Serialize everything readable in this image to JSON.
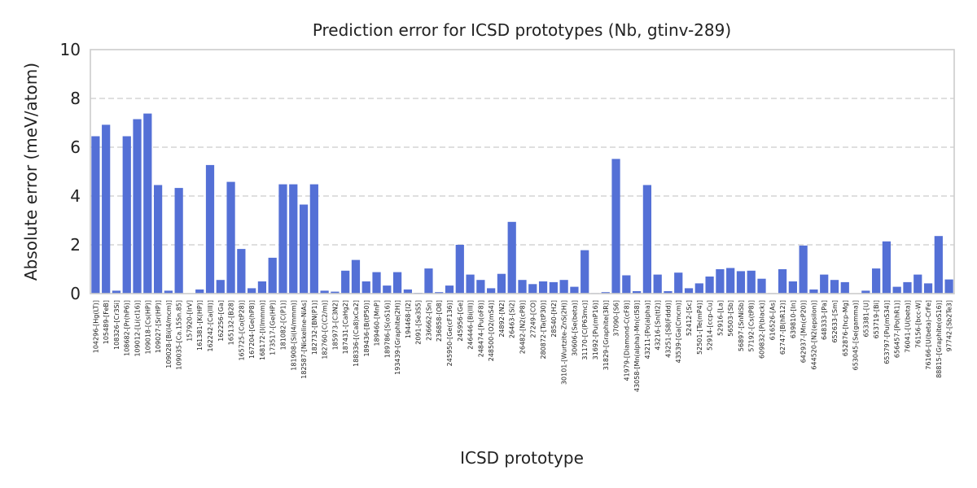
{
  "chart_data": {
    "type": "bar",
    "title": "Prediction error for ICSD prototypes (Nb, gtinv-289)",
    "xlabel": "ICSD prototype",
    "ylabel": "Absolute error (meV/atom)",
    "ylim": [
      0,
      10
    ],
    "yticks": [
      0,
      2,
      4,
      6,
      8,
      10
    ],
    "grid": "y",
    "bar_color": "#5470d6",
    "categories": [
      "104296-[Hg(LT)]",
      "105489-[FeB]",
      "108326-[Cr3Si]",
      "108682-[Pr(hP6)]",
      "109012-[Li(cI16)]",
      "109018-[Cs(HP)]",
      "109027-[Sr(HP)]",
      "109028-[Bi(I4/mcm)]",
      "109035-[Ca.15Sn.85]",
      "157920-[IrV]",
      "161381-[K(HP)]",
      "162242-[Ca(III)]",
      "162256-[Ga]",
      "165132-[B28]",
      "165725-[Co(tP28)]",
      "167204-[Ge(hP8)]",
      "168172-[I(Immm)]",
      "173517-[Ge(HP)]",
      "181082-[C(P1)]",
      "181908-[Si(I4/mmm)]",
      "182587-[Nickeline-NiAs]",
      "182732-[BN(P1)]",
      "182760-[C(C2/m)]",
      "185973-[C3N2]",
      "187431-[CaHg2]",
      "188336-[(Ca8)xCa2]",
      "189436-[B(tP50)]",
      "189460-[MnP]",
      "189786-[S(oS16)]",
      "193439-[Graphite(2H)]",
      "194468-[I2]",
      "2091-[Se3S5]",
      "236662-[Sn]",
      "236858-[O8]",
      "245950-[Ge(cF136)]",
      "245956-[Ge]",
      "246446-[Bi(III)]",
      "248474-[Pu(oF8)]",
      "248500-[O2(mS4)]",
      "24892-[N2]",
      "26463-[Si2]",
      "26482-[N2(cP8)]",
      "27249-[CO]",
      "280872-[Ta(tP30)]",
      "28540-[H2]",
      "30101-[Wurtzite-ZnS(2H)]",
      "30606-[Se(beta)]",
      "31170-[C(P63mc)]",
      "31692-[Pu(mP16)]",
      "31829-[Graphite(3R)]",
      "37090-[S6]",
      "41979-[Diamond-C(cF8)]",
      "43058-[Mn(alpha)-Mn(cI58)]",
      "43211-[Po(alpha)]",
      "43216-[Sn(tI2)]",
      "43251-[S8(Fddd)]",
      "43539-[Ga(Cmcm)]",
      "52412-[Sc]",
      "52501-[Te(mP4)]",
      "52914-[ccp-Cu]",
      "52916-[La]",
      "56503-[Sb]",
      "56897-[SnNiSb]",
      "57192-[Cs(tP8)]",
      "609832-[P(black)]",
      "616526-[As]",
      "62747-[B(hR12)]",
      "639810-[In]",
      "642937-[Mn(cP20)]",
      "644520-[N2(epsilon)]",
      "648333-[Pa]",
      "652633-[Sm]",
      "652876-[hcp-Mg]",
      "653045-[Se(gamma)]",
      "653381-[U]",
      "653719-[Bi]",
      "653797-[Pu(mS34)]",
      "656457-[Po(hR1)]",
      "76041-[U(beta)]",
      "76156-[bcc-W]",
      "76166-[U(beta)-CrFe]",
      "88815-[Graphite(oS16)]",
      "97742-[Sb2Te3]"
    ],
    "values": [
      6.45,
      6.92,
      0.12,
      6.45,
      7.15,
      7.38,
      4.45,
      0.12,
      4.33,
      0.0,
      0.17,
      5.27,
      0.56,
      4.58,
      1.83,
      0.22,
      0.5,
      1.47,
      4.48,
      4.48,
      3.65,
      4.48,
      0.12,
      0.08,
      0.94,
      1.38,
      0.5,
      0.88,
      0.33,
      0.88,
      0.17,
      0.03,
      1.03,
      0.06,
      0.33,
      2.0,
      0.78,
      0.56,
      0.22,
      0.81,
      2.94,
      0.56,
      0.39,
      0.5,
      0.47,
      0.56,
      0.28,
      1.78,
      0.02,
      0.06,
      5.52,
      0.75,
      0.1,
      4.45,
      0.78,
      0.1,
      0.86,
      0.22,
      0.42,
      0.7,
      1.0,
      1.05,
      0.92,
      0.94,
      0.61,
      0.02,
      1.0,
      0.5,
      1.97,
      0.17,
      0.78,
      0.56,
      0.47,
      0.0,
      0.12,
      1.03,
      2.14,
      0.28,
      0.47,
      0.78,
      0.42,
      2.36,
      0.58
    ]
  }
}
